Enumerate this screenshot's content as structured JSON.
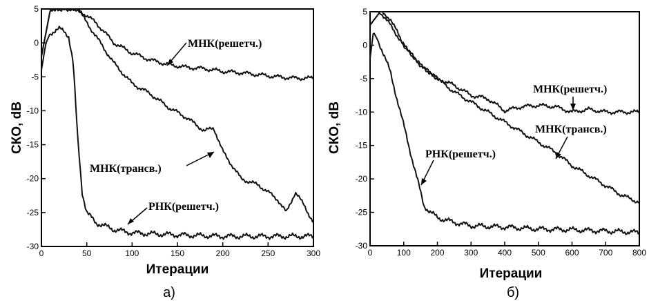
{
  "chart_data": [
    {
      "type": "line",
      "panel_label": "а)",
      "xlabel": "Итерации",
      "ylabel": "СКО, dB",
      "xlim": [
        0,
        300
      ],
      "ylim": [
        -30,
        5
      ],
      "xticks": [
        0,
        50,
        100,
        150,
        200,
        250,
        300
      ],
      "yticks": [
        5,
        0,
        -5,
        -10,
        -15,
        -20,
        -25,
        -30
      ],
      "grid": false,
      "series": [
        {
          "name": "МНК(решетч.)",
          "x": [
            0,
            10,
            20,
            40,
            60,
            80,
            100,
            120,
            140,
            160,
            180,
            200,
            220,
            240,
            260,
            280,
            300
          ],
          "y": [
            -2,
            5,
            5,
            5,
            3,
            0,
            -1.5,
            -2.5,
            -3.2,
            -3.6,
            -3.8,
            -4.2,
            -4.4,
            -4.7,
            -5,
            -5.2,
            -5.2
          ]
        },
        {
          "name": "МНК(трансв.)",
          "x": [
            0,
            10,
            20,
            40,
            50,
            60,
            80,
            100,
            120,
            140,
            160,
            180,
            190,
            200,
            220,
            240,
            260,
            270,
            280,
            290,
            300
          ],
          "y": [
            -2,
            5,
            5,
            5,
            3,
            1,
            -3,
            -6,
            -7.5,
            -9.5,
            -11,
            -13,
            -12.5,
            -16,
            -20,
            -21,
            -23,
            -25,
            -22,
            -24,
            -26.5
          ]
        },
        {
          "name": "РНК(решетч.)",
          "x": [
            0,
            5,
            10,
            20,
            25,
            30,
            35,
            40,
            45,
            50,
            60,
            80,
            100,
            150,
            200,
            250,
            300
          ],
          "y": [
            -4,
            0,
            1.5,
            2,
            1.8,
            1,
            -3,
            -14,
            -22,
            -25,
            -26.5,
            -27.5,
            -28,
            -28.3,
            -28.5,
            -28.5,
            -28.5
          ]
        }
      ],
      "annotations": [
        "МНК(решетч.)",
        "МНК(трансв.)",
        "РНК(решетч.)"
      ]
    },
    {
      "type": "line",
      "panel_label": "б)",
      "xlabel": "Итерации",
      "ylabel": "СКО, dB",
      "xlim": [
        0,
        800
      ],
      "ylim": [
        -30,
        5
      ],
      "xticks": [
        0,
        100,
        200,
        300,
        400,
        500,
        600,
        700,
        800
      ],
      "yticks": [
        5,
        0,
        -5,
        -10,
        -15,
        -20,
        -25,
        -30
      ],
      "grid": false,
      "series": [
        {
          "name": "МНК(решетч.)",
          "x": [
            0,
            30,
            60,
            100,
            150,
            200,
            250,
            300,
            350,
            400,
            450,
            500,
            550,
            600,
            650,
            700,
            800
          ],
          "y": [
            3,
            5,
            3,
            0,
            -3,
            -5,
            -6,
            -7.5,
            -8,
            -9.8,
            -9.2,
            -9,
            -9.2,
            -10,
            -9.6,
            -10,
            -10
          ]
        },
        {
          "name": "МНК(трансв.)",
          "x": [
            0,
            30,
            60,
            100,
            150,
            200,
            250,
            300,
            350,
            400,
            450,
            500,
            550,
            600,
            650,
            700,
            750,
            800
          ],
          "y": [
            3,
            5,
            4,
            0,
            -3,
            -5,
            -7,
            -8.5,
            -10,
            -11.5,
            -13,
            -14.5,
            -16,
            -18,
            -19.5,
            -21,
            -22.5,
            -23.5
          ]
        },
        {
          "name": "РНК(решетч.)",
          "x": [
            0,
            10,
            30,
            60,
            80,
            100,
            120,
            140,
            160,
            180,
            200,
            250,
            300,
            400,
            500,
            600,
            700,
            800
          ],
          "y": [
            -2,
            2,
            0,
            -4,
            -8,
            -12,
            -16,
            -20,
            -24,
            -25,
            -25.8,
            -26.5,
            -27,
            -27.2,
            -27.5,
            -27.6,
            -27.8,
            -28
          ]
        }
      ],
      "annotations": [
        "МНК(решетч.)",
        "МНК(трансв.)",
        "РНК(решетч.)"
      ]
    }
  ]
}
